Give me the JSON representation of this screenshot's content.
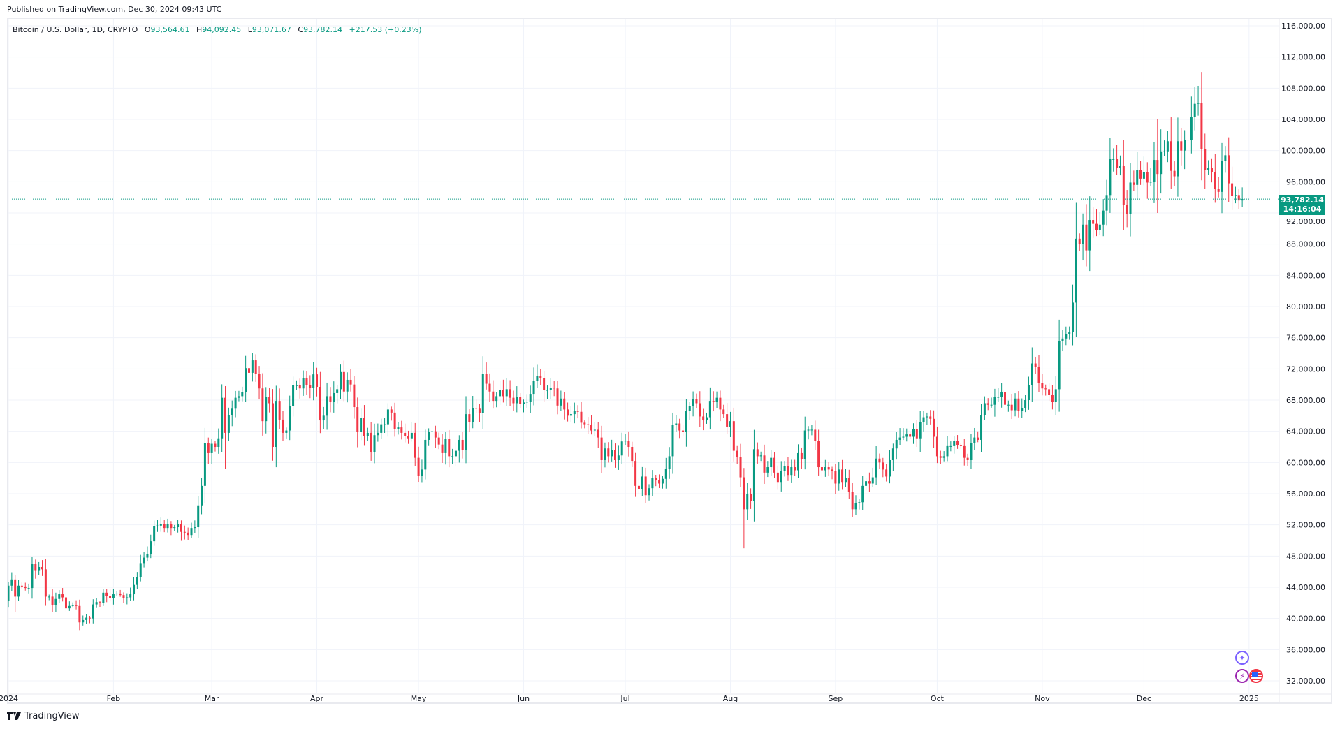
{
  "published": "Published on TradingView.com, Dec 30, 2024 09:43 UTC",
  "legend": {
    "symbol": "Bitcoin / U.S. Dollar, 1D, CRYPTO",
    "o_label": "O",
    "o": "93,564.61",
    "h_label": "H",
    "h": "94,092.45",
    "l_label": "L",
    "l": "93,071.67",
    "c_label": "C",
    "c": "93,782.14",
    "change": "+217.53 (+0.23%)"
  },
  "last_price": {
    "value": "93,782.14",
    "countdown": "14:16:04"
  },
  "brand": "TradingView",
  "colors": {
    "up": "#089981",
    "down": "#f23645",
    "grid": "#f0f3fa"
  },
  "events": [
    {
      "icon": "sparkle-icon",
      "color": "#7b61ff"
    },
    {
      "icon": "lightning-icon",
      "color": "#9c27b0"
    },
    {
      "icon": "us-flag-icon",
      "color": "#f23645"
    }
  ],
  "chart_data": {
    "type": "candlestick",
    "title": "Bitcoin / U.S. Dollar, 1D, CRYPTO",
    "start_date": "2024-01-01",
    "interval": "1D",
    "ylim": [
      30000,
      118000
    ],
    "y_ticks": [
      "116,000.00",
      "112,000.00",
      "108,000.00",
      "104,000.00",
      "100,000.00",
      "96,000.00",
      "92,000.00",
      "88,000.00",
      "84,000.00",
      "80,000.00",
      "76,000.00",
      "72,000.00",
      "68,000.00",
      "64,000.00",
      "60,000.00",
      "56,000.00",
      "52,000.00",
      "48,000.00",
      "44,000.00",
      "40,000.00",
      "36,000.00",
      "32,000.00"
    ],
    "x_ticks": [
      {
        "label": "2024",
        "date": "2024-01-01"
      },
      {
        "label": "Feb",
        "date": "2024-02-01"
      },
      {
        "label": "Mar",
        "date": "2024-03-01"
      },
      {
        "label": "Apr",
        "date": "2024-04-01"
      },
      {
        "label": "May",
        "date": "2024-05-01"
      },
      {
        "label": "Jun",
        "date": "2024-06-01"
      },
      {
        "label": "Jul",
        "date": "2024-07-01"
      },
      {
        "label": "Aug",
        "date": "2024-08-01"
      },
      {
        "label": "Sep",
        "date": "2024-09-01"
      },
      {
        "label": "Oct",
        "date": "2024-10-01"
      },
      {
        "label": "Nov",
        "date": "2024-11-01"
      },
      {
        "label": "Dec",
        "date": "2024-12-01"
      },
      {
        "label": "2025",
        "date": "2025-01-01"
      }
    ],
    "grid": true,
    "first_open": 42300,
    "close": [
      44200,
      45000,
      42800,
      44200,
      44100,
      43900,
      43900,
      47000,
      46100,
      46600,
      46300,
      42800,
      42800,
      41700,
      42500,
      43100,
      42700,
      41300,
      41600,
      41700,
      41600,
      39500,
      39800,
      40100,
      40000,
      41800,
      42100,
      42000,
      43300,
      42900,
      42600,
      43100,
      43200,
      43000,
      42600,
      42700,
      43100,
      44300,
      45300,
      47100,
      47800,
      48300,
      49900,
      51800,
      51900,
      52100,
      51600,
      52100,
      51600,
      51700,
      52100,
      51100,
      51000,
      50700,
      51600,
      51700,
      54500,
      57000,
      62500,
      61200,
      62400,
      62000,
      63100,
      68300,
      63800,
      66100,
      66900,
      68300,
      68500,
      69000,
      72100,
      71500,
      73100,
      71400,
      69500,
      65300,
      68400,
      67600,
      62000,
      67900,
      65500,
      63800,
      64100,
      67200,
      69900,
      69900,
      69500,
      70800,
      69900,
      69600,
      71300,
      69700,
      65400,
      66000,
      68500,
      67800,
      68900,
      69400,
      71600,
      69100,
      70600,
      70000,
      67100,
      63900,
      65700,
      63400,
      63800,
      61300,
      63500,
      63800,
      64900,
      64900,
      66800,
      66400,
      64300,
      64500,
      63800,
      63400,
      63100,
      63800,
      60600,
      58300,
      59100,
      62900,
      63900,
      64000,
      63200,
      62300,
      61200,
      63000,
      60800,
      60800,
      61500,
      62900,
      61600,
      66200,
      65200,
      67000,
      66900,
      66300,
      71400,
      70100,
      69100,
      67900,
      68500,
      69300,
      68500,
      69400,
      68300,
      67600,
      68400,
      67500,
      67700,
      67800,
      68800,
      70500,
      71100,
      70800,
      69300,
      69300,
      69600,
      69500,
      67300,
      68200,
      66800,
      66000,
      66200,
      66600,
      66500,
      65100,
      64900,
      64800,
      64100,
      64200,
      63200,
      60300,
      61800,
      60800,
      61600,
      60300,
      60900,
      62700,
      62800,
      62000,
      60200,
      57000,
      56600,
      58200,
      55800,
      56700,
      58000,
      57700,
      57300,
      57900,
      59200,
      60800,
      64800,
      65000,
      64100,
      63900,
      66600,
      67200,
      68100,
      67600,
      65900,
      65400,
      65800,
      67900,
      67800,
      68300,
      66800,
      66200,
      64600,
      65300,
      61500,
      60700,
      58100,
      54000,
      56000,
      55100,
      61700,
      60800,
      60900,
      58700,
      59400,
      60600,
      58700,
      57500,
      58900,
      59500,
      58400,
      59400,
      59000,
      61200,
      60400,
      64100,
      64200,
      64200,
      62800,
      59400,
      59000,
      59400,
      59100,
      58900,
      57300,
      59100,
      57500,
      58000,
      56200,
      54000,
      54800,
      54900,
      57000,
      57600,
      57300,
      58100,
      60500,
      60000,
      59100,
      58200,
      60300,
      61800,
      62900,
      63200,
      63300,
      63600,
      63300,
      64300,
      63100,
      65200,
      65800,
      65900,
      65600,
      63300,
      60800,
      60600,
      60800,
      62100,
      62100,
      62800,
      62200,
      62100,
      60600,
      60300,
      62500,
      63200,
      62900,
      66100,
      67600,
      67400,
      67400,
      68400,
      68400,
      69000,
      67400,
      67400,
      66700,
      68200,
      66600,
      67000,
      68000,
      69900,
      72700,
      72300,
      70200,
      69500,
      69400,
      68700,
      67800,
      69400,
      75600,
      75900,
      76500,
      76700,
      80500,
      88700,
      88000,
      90500,
      87200,
      91100,
      90600,
      89800,
      90500,
      92300,
      94300,
      98900,
      98900,
      97800,
      98000,
      93000,
      91900,
      95900,
      95600,
      97500,
      96400,
      97200,
      95900,
      96000,
      98800,
      97000,
      99900,
      99900,
      101200,
      97400,
      96700,
      101200,
      100000,
      101400,
      101400,
      104300,
      106000,
      106100,
      100200,
      97500,
      97800,
      97200,
      95100,
      94700,
      98700,
      99400,
      95800,
      94200,
      94300,
      93600,
      93782.14
    ],
    "notable_wicks": [
      {
        "date": "2024-08-05",
        "low": 49000
      },
      {
        "date": "2024-12-05",
        "high": 104000,
        "low": 92000
      },
      {
        "date": "2024-12-17",
        "high": 108300
      },
      {
        "date": "2024-03-05",
        "low": 59200
      },
      {
        "date": "2024-01-03",
        "low": 40800
      }
    ],
    "last_price": 93782.14
  }
}
